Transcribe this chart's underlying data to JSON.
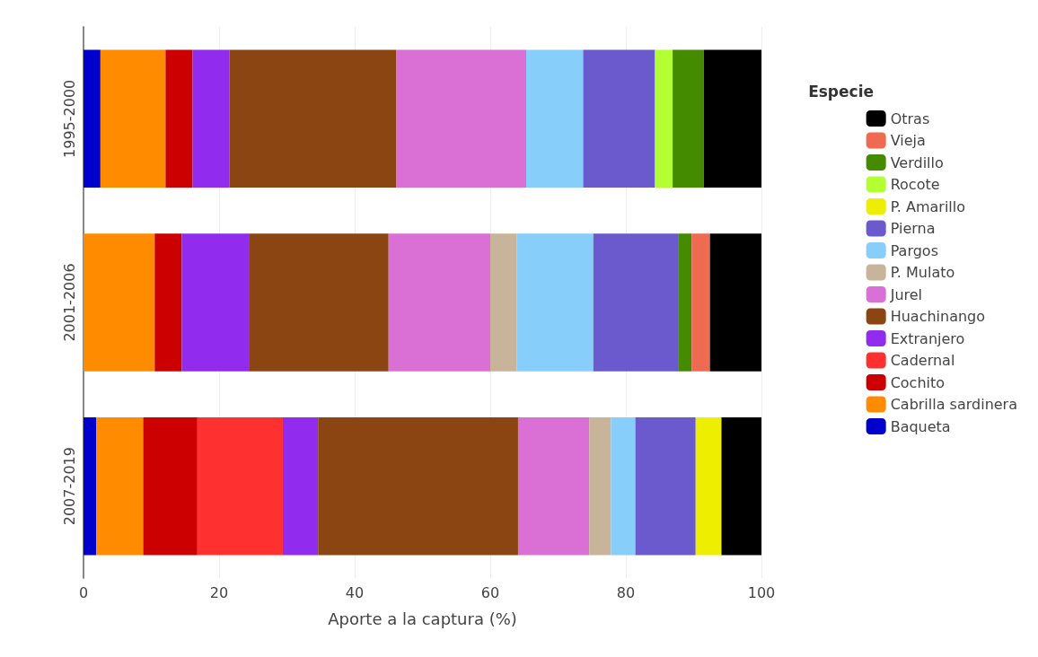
{
  "chart_data": {
    "type": "bar",
    "orientation": "horizontal",
    "stacked": true,
    "categories": [
      "1995-2000",
      "2001-2006",
      "2007-2019"
    ],
    "xlabel": "Aporte a la captura (%)",
    "legend_title": "Especie",
    "xlim": [
      0,
      100
    ],
    "xticks": [
      0,
      20,
      40,
      60,
      80,
      100
    ],
    "grid": "x",
    "legend": "right",
    "series": [
      {
        "name": "Baqueta",
        "color": "#0000cc",
        "values": [
          2.5,
          null,
          1.9
        ]
      },
      {
        "name": "Cabrilla sardinera",
        "color": "#ff8c00",
        "values": [
          9.6,
          10.5,
          6.9
        ]
      },
      {
        "name": "Cochito",
        "color": "#cc0000",
        "values": [
          4.0,
          4.0,
          8.0
        ]
      },
      {
        "name": "Cadernal",
        "color": "#ff3030",
        "values": [
          null,
          null,
          12.6
        ]
      },
      {
        "name": "Extranjero",
        "color": "#912cee",
        "values": [
          5.4,
          10.0,
          5.2
        ]
      },
      {
        "name": "Huachinango",
        "color": "#8b4513",
        "values": [
          24.6,
          20.5,
          29.5
        ]
      },
      {
        "name": "Jurel",
        "color": "#da70d6",
        "values": [
          19.2,
          15.0,
          10.5
        ]
      },
      {
        "name": "P. Mulato",
        "color": "#c8b49a",
        "values": [
          null,
          3.9,
          3.2
        ]
      },
      {
        "name": "Pargos",
        "color": "#87cefa",
        "values": [
          8.4,
          11.3,
          3.6
        ]
      },
      {
        "name": "Pierna",
        "color": "#6a5acd",
        "values": [
          10.6,
          12.5,
          8.9
        ]
      },
      {
        "name": "P. Amarillo",
        "color": "#eeee00",
        "values": [
          null,
          null,
          3.8
        ]
      },
      {
        "name": "Rocote",
        "color": "#b3ff33",
        "values": [
          2.6,
          null,
          null
        ]
      },
      {
        "name": "Verdillo",
        "color": "#458b00",
        "values": [
          4.6,
          2.0,
          null
        ]
      },
      {
        "name": "Vieja",
        "color": "#ee6a50",
        "values": [
          null,
          2.7,
          null
        ]
      },
      {
        "name": "Otras",
        "color": "#000000",
        "values": [
          8.5,
          7.6,
          5.9
        ]
      }
    ]
  }
}
